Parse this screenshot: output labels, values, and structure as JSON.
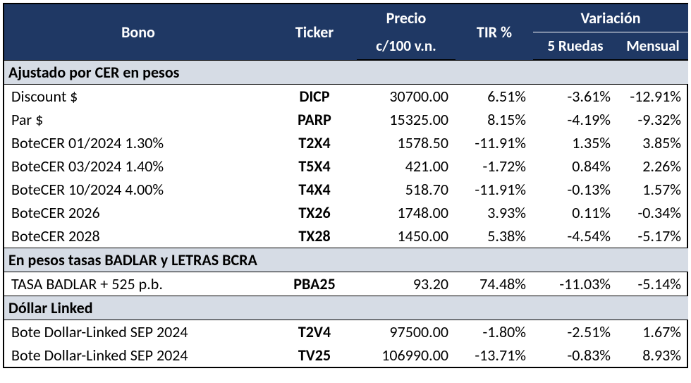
{
  "type": "table",
  "colors": {
    "header_bg": "#1f3864",
    "header_text": "#ffffff",
    "section_bg": "#d6dce5",
    "border": "#000000",
    "text": "#000000",
    "bg": "#ffffff"
  },
  "header": {
    "bono": "Bono",
    "ticker": "Ticker",
    "precio": "Precio\nc/100 v.n.",
    "precio_top": "Precio",
    "precio_bot": "c/100 v.n.",
    "tir": "TIR %",
    "variacion": "Variación",
    "v5r": "5 Ruedas",
    "vmen": "Mensual"
  },
  "sections": [
    {
      "title": "Ajustado por CER en pesos",
      "rows": [
        {
          "bono": "Discount $",
          "ticker": "DICP",
          "precio": "30700.00",
          "tir": "6.51%",
          "v5r": "-3.61%",
          "vmen": "-12.91%"
        },
        {
          "bono": "Par $",
          "ticker": "PARP",
          "precio": "15325.00",
          "tir": "8.15%",
          "v5r": "-4.19%",
          "vmen": "-9.32%"
        },
        {
          "bono": "BoteCER  01/2024  1.30%",
          "ticker": "T2X4",
          "precio": "1578.50",
          "tir": "-11.91%",
          "v5r": "1.35%",
          "vmen": "3.85%"
        },
        {
          "bono": "BoteCER 03/2024  1.40%",
          "ticker": "T5X4",
          "precio": "421.00",
          "tir": "-1.72%",
          "v5r": "0.84%",
          "vmen": "2.26%"
        },
        {
          "bono": "BoteCER 10/2024  4.00%",
          "ticker": "T4X4",
          "precio": "518.70",
          "tir": "-11.91%",
          "v5r": "-0.13%",
          "vmen": "1.57%"
        },
        {
          "bono": "BoteCER 2026",
          "ticker": "TX26",
          "precio": "1748.00",
          "tir": "3.93%",
          "v5r": "0.11%",
          "vmen": "-0.34%"
        },
        {
          "bono": "BoteCER 2028",
          "ticker": "TX28",
          "precio": "1450.00",
          "tir": "5.38%",
          "v5r": "-4.54%",
          "vmen": "-5.17%"
        }
      ]
    },
    {
      "title": "En pesos tasas BADLAR y LETRAS BCRA",
      "rows": [
        {
          "bono": "TASA BADLAR + 525 p.b.",
          "ticker": "PBA25",
          "precio": "93.20",
          "tir": "74.48%",
          "v5r": "-11.03%",
          "vmen": "-5.14%"
        }
      ]
    },
    {
      "title": "Dóllar Linked",
      "rows": [
        {
          "bono": "Bote Dollar-Linked SEP 2024",
          "ticker": "T2V4",
          "precio": "97500.00",
          "tir": "-1.80%",
          "v5r": "-2.51%",
          "vmen": "1.67%"
        },
        {
          "bono": "Bote Dollar-Linked SEP 2024",
          "ticker": "TV25",
          "precio": "106990.00",
          "tir": "-13.71%",
          "v5r": "-0.83%",
          "vmen": "8.93%"
        }
      ]
    }
  ]
}
